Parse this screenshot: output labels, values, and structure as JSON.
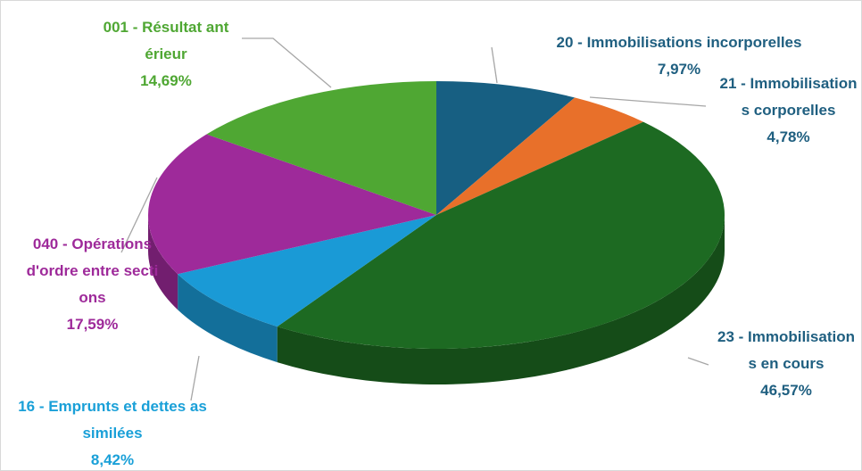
{
  "chart_data": {
    "type": "pie3d",
    "categories": [
      "20 - Immobilisations incorporelles",
      "21 - Immobilisations corporelles",
      "23 - Immobilisations en cours",
      "16  - Emprunts et dettes assimilées",
      "040 - Opérations d'ordre entre sections",
      "001 - Résultat antérieur"
    ],
    "values": [
      7.97,
      4.78,
      46.57,
      8.42,
      17.59,
      14.69
    ],
    "value_labels": [
      "7,97%",
      "4,78%",
      "46,57%",
      "8,42%",
      "17,59%",
      "14,69%"
    ],
    "colors": [
      "#175f82",
      "#e8702a",
      "#1d6a22",
      "#1a9ad6",
      "#9e2a9a",
      "#4fa733"
    ],
    "label_colors": [
      "#1f5f80",
      "#1f5f80",
      "#1f5f80",
      "#1aa0d8",
      "#9e2a9a",
      "#4fa733"
    ]
  }
}
